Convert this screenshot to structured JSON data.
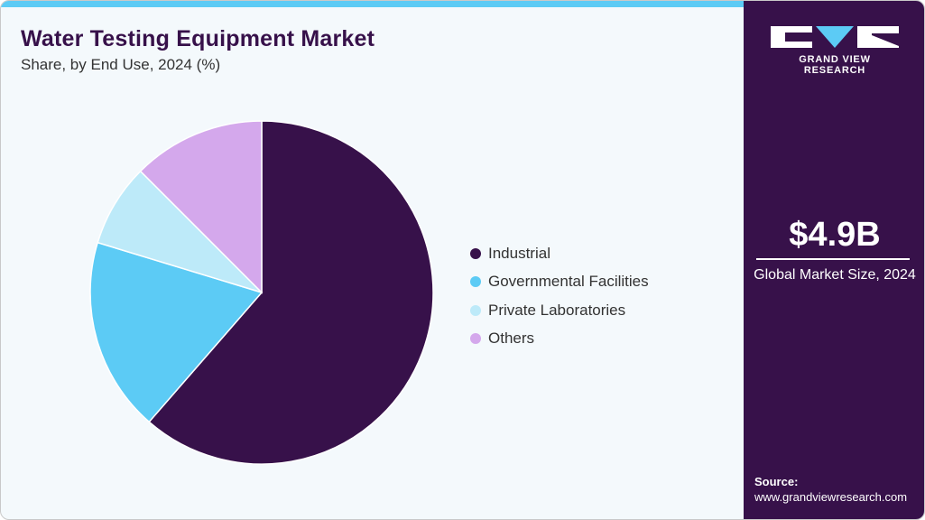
{
  "header": {
    "title": "Water Testing Equipment Market",
    "subtitle": "Share, by End Use, 2024 (%)"
  },
  "brand": {
    "name": "GRAND VIEW RESEARCH",
    "accent": "#5ccbf5",
    "panel_color": "#37114a"
  },
  "summary": {
    "value": "$4.9B",
    "label": "Global Market Size, 2024"
  },
  "source": {
    "label": "Source:",
    "url": "www.grandviewresearch.com"
  },
  "legend": [
    {
      "label": "Industrial",
      "color": "#37114a"
    },
    {
      "label": "Governmental Facilities",
      "color": "#5ccbf5"
    },
    {
      "label": "Private Laboratories",
      "color": "#bdeaf9"
    },
    {
      "label": "Others",
      "color": "#d4a8ec"
    }
  ],
  "chart_data": {
    "type": "pie",
    "title": "Water Testing Equipment Market",
    "subtitle": "Share, by End Use, 2024 (%)",
    "categories": [
      "Industrial",
      "Governmental Facilities",
      "Private Laboratories",
      "Others"
    ],
    "values": [
      61.4,
      18.3,
      7.8,
      12.5
    ],
    "colors": [
      "#37114a",
      "#5ccbf5",
      "#bdeaf9",
      "#d4a8ec"
    ],
    "start_angle": "top (12 o'clock), clockwise",
    "legend_position": "right",
    "data_labels": false
  }
}
